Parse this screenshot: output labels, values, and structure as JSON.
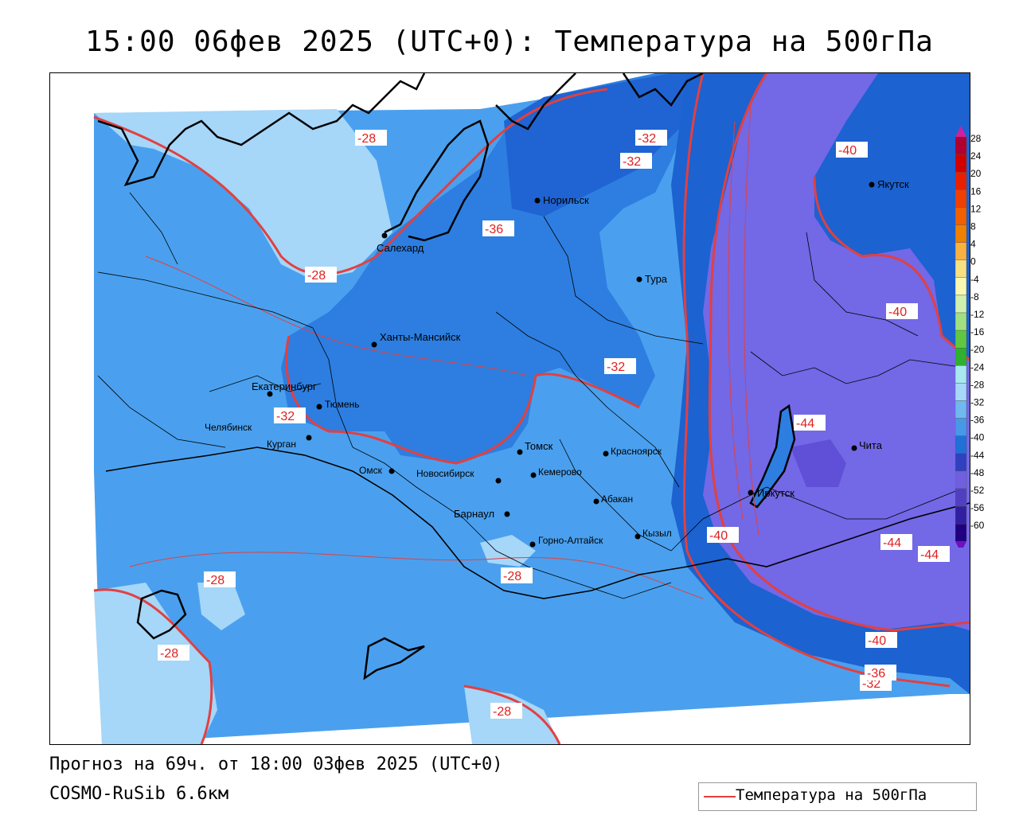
{
  "title": "15:00 06фев 2025 (UTC+0): Температура на 500гПа",
  "footer": {
    "forecast": "Прогноз на 69ч. от 18:00 03фев 2025 (UTC+0)",
    "model": "COSMO-RuSib 6.6км"
  },
  "legend": {
    "label": "Температура на 500гПа",
    "line_color": "#e24040"
  },
  "colorbar": {
    "ticks": [
      "28",
      "24",
      "20",
      "16",
      "12",
      "8",
      "4",
      "0",
      "-4",
      "-8",
      "-12",
      "-16",
      "-20",
      "-24",
      "-28",
      "-32",
      "-36",
      "-40",
      "-44",
      "-48",
      "-52",
      "-56",
      "-60"
    ],
    "colors": [
      "#b00030",
      "#d00000",
      "#e82000",
      "#f04000",
      "#f06000",
      "#f08000",
      "#f8b040",
      "#f8e080",
      "#f8f8b0",
      "#d0f0b0",
      "#a0e080",
      "#60c840",
      "#30b030",
      "#a8e8f0",
      "#a8d8f8",
      "#70b8f0",
      "#4898e8",
      "#2070d8",
      "#3040c0",
      "#7060e0",
      "#5040c0",
      "#3020a0",
      "#200080"
    ]
  },
  "cities": [
    {
      "name": "Салехард"
    },
    {
      "name": "Норильск"
    },
    {
      "name": "Тура"
    },
    {
      "name": "Якутск"
    },
    {
      "name": "Ханты-Мансийск"
    },
    {
      "name": "Екатеринбург"
    },
    {
      "name": "Тюмень"
    },
    {
      "name": "Челябинск"
    },
    {
      "name": "Курган"
    },
    {
      "name": "Омск"
    },
    {
      "name": "Новосибирск"
    },
    {
      "name": "Томск"
    },
    {
      "name": "Кемерово"
    },
    {
      "name": "Красноярск"
    },
    {
      "name": "Абакан"
    },
    {
      "name": "Барнаул"
    },
    {
      "name": "Горно-Алтайск"
    },
    {
      "name": "Кызыл"
    },
    {
      "name": "Иркутск"
    },
    {
      "name": "Чита"
    }
  ],
  "contour_labels": [
    "-28",
    "-28",
    "-28",
    "-28",
    "-28",
    "-28",
    "-32",
    "-32",
    "-32",
    "-32",
    "-32",
    "-36",
    "-36",
    "-40",
    "-40",
    "-40",
    "-40",
    "-44",
    "-44",
    "-44"
  ]
}
